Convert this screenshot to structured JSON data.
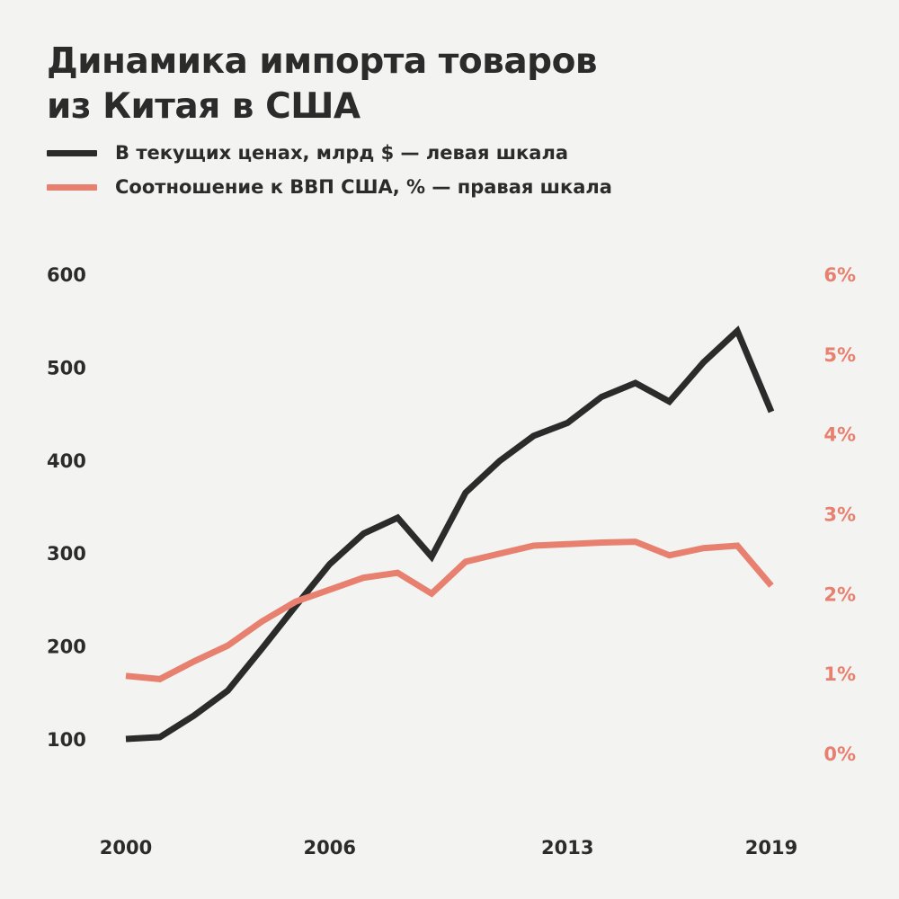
{
  "title_lines": [
    "Динамика импорта товаров",
    "из Китая в США"
  ],
  "colors": {
    "black": "#2b2b2b",
    "pink": "#e8806f",
    "background": "#f3f3f1"
  },
  "chart_data": {
    "type": "line",
    "title": "Динамика импорта товаров из Китая в США",
    "x": [
      2000,
      2001,
      2002,
      2003,
      2004,
      2005,
      2006,
      2007,
      2008,
      2009,
      2010,
      2011,
      2012,
      2013,
      2014,
      2015,
      2016,
      2017,
      2018,
      2019
    ],
    "x_ticks": [
      "2000",
      "2006",
      "2013",
      "2019"
    ],
    "xlim": [
      2000,
      2019
    ],
    "left_axis": {
      "ticks": [
        "100",
        "200",
        "300",
        "400",
        "500",
        "600"
      ],
      "ylim": [
        100,
        600
      ]
    },
    "right_axis": {
      "ticks": [
        "0%",
        "1%",
        "2%",
        "3%",
        "4%",
        "5%",
        "6%"
      ],
      "ylim": [
        0,
        6
      ]
    },
    "series": [
      {
        "name": "В текущих ценах, млрд $ — левая шкала",
        "axis": "left",
        "color": "#2b2b2b",
        "values": [
          100,
          102,
          125,
          152,
          197,
          243,
          288,
          321,
          338,
          296,
          365,
          399,
          426,
          440,
          468,
          483,
          463,
          505,
          539,
          452
        ]
      },
      {
        "name": "Соотношение к ВВП США, % — правая шкала",
        "axis": "right",
        "color": "#e8806f",
        "values": [
          0.97,
          0.93,
          1.15,
          1.35,
          1.65,
          1.9,
          2.05,
          2.2,
          2.26,
          2.0,
          2.4,
          2.5,
          2.6,
          2.62,
          2.64,
          2.65,
          2.48,
          2.57,
          2.6,
          2.1
        ]
      }
    ],
    "legend": "top-left",
    "grid": false
  }
}
